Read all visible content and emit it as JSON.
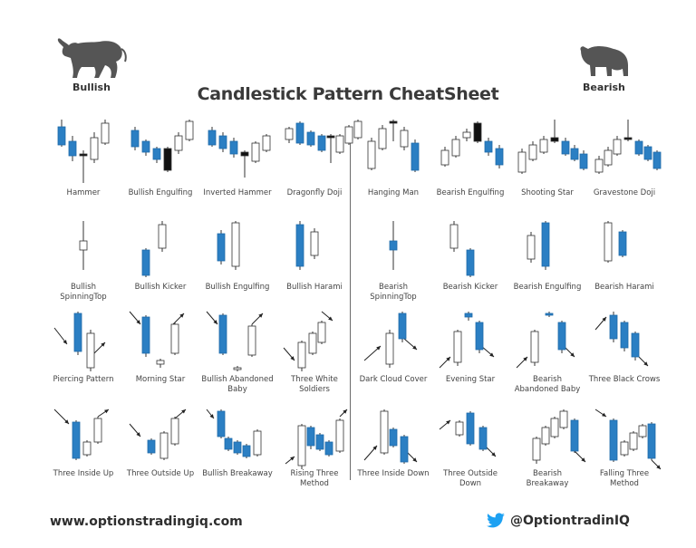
{
  "title": "Candlestick Pattern CheatSheet",
  "bullish_label": "Bullish",
  "bearish_label": "Bearish",
  "footer": {
    "website": "www.optionstradingiq.com",
    "twitter_handle": "@OptiontradinIQ"
  },
  "colors": {
    "blue": "#2b7fc3",
    "black": "#111111",
    "white": "#ffffff",
    "outline": "#333333",
    "text": "#3a3a3a",
    "twitter": "#1da1f2"
  },
  "patterns": [
    {
      "name": "Hammer",
      "side": "bullish"
    },
    {
      "name": "Bullish Engulfing",
      "side": "bullish"
    },
    {
      "name": "Inverted Hammer",
      "side": "bullish"
    },
    {
      "name": "Dragonfly Doji",
      "side": "bullish"
    },
    {
      "name": "Hanging Man",
      "side": "bearish"
    },
    {
      "name": "Bearish Engulfing",
      "side": "bearish"
    },
    {
      "name": "Shooting Star",
      "side": "bearish"
    },
    {
      "name": "Gravestone Doji",
      "side": "bearish"
    },
    {
      "name": "Bullish SpinningTop",
      "side": "bullish"
    },
    {
      "name": "Bullish Kicker",
      "side": "bullish"
    },
    {
      "name": "Bullish Engulfing",
      "side": "bullish"
    },
    {
      "name": "Bullish Harami",
      "side": "bullish"
    },
    {
      "name": "Bearish SpinningTop",
      "side": "bearish"
    },
    {
      "name": "Bearish Kicker",
      "side": "bearish"
    },
    {
      "name": "Bearish Engulfing",
      "side": "bearish"
    },
    {
      "name": "Bearish Harami",
      "side": "bearish"
    },
    {
      "name": "Piercing Pattern",
      "side": "bullish"
    },
    {
      "name": "Morning Star",
      "side": "bullish"
    },
    {
      "name": "Bullish Abandoned Baby",
      "side": "bullish"
    },
    {
      "name": "Three White Soldiers",
      "side": "bullish"
    },
    {
      "name": "Dark Cloud Cover",
      "side": "bearish"
    },
    {
      "name": "Evening Star",
      "side": "bearish"
    },
    {
      "name": "Bearish Abandoned Baby",
      "side": "bearish"
    },
    {
      "name": "Three Black Crows",
      "side": "bearish"
    },
    {
      "name": "Three Inside Up",
      "side": "bullish"
    },
    {
      "name": "Three Outside Up",
      "side": "bullish"
    },
    {
      "name": "Bullish Breakaway",
      "side": "bullish"
    },
    {
      "name": "Rising Three Method",
      "side": "bullish"
    },
    {
      "name": "Three Inside Down",
      "side": "bearish"
    },
    {
      "name": "Three Outside Down",
      "side": "bearish"
    },
    {
      "name": "Bearish Breakaway",
      "side": "bearish"
    },
    {
      "name": "Falling Three Method",
      "side": "bearish"
    }
  ]
}
